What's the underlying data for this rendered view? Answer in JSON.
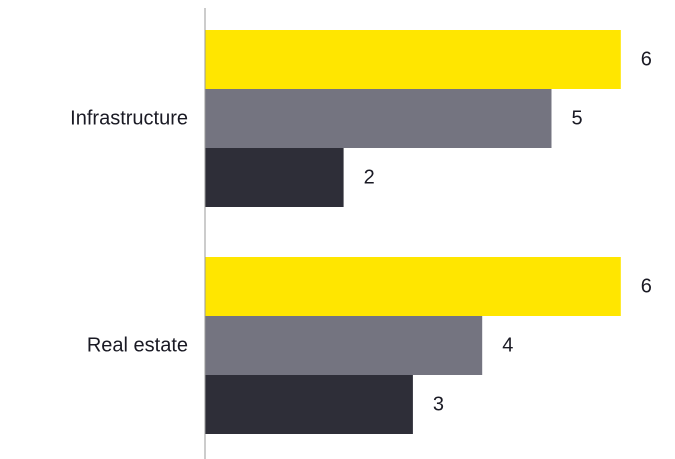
{
  "chart_data": {
    "type": "bar",
    "orientation": "horizontal",
    "categories": [
      "Infrastructure",
      "Real estate"
    ],
    "series": [
      {
        "color": "#ffe600",
        "values": [
          6,
          6
        ]
      },
      {
        "color": "#747480",
        "values": [
          5,
          4
        ]
      },
      {
        "color": "#2e2e38",
        "values": [
          2,
          3
        ]
      }
    ],
    "xlim": [
      0,
      6
    ],
    "grid": false,
    "legend": "none",
    "axis_color": "#999999"
  }
}
